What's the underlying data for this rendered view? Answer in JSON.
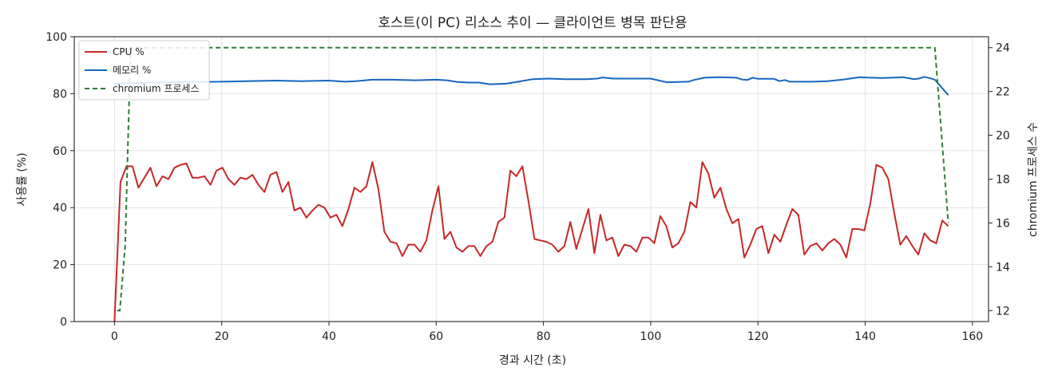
{
  "chart_data": {
    "type": "line",
    "title": "호스트(이 PC) 리소스 추이 — 클라이언트 병목 판단용",
    "xlabel": "경과 시간 (초)",
    "ylabel": "사용률 (%)",
    "y2label": "chromium 프로세스 수",
    "xlim": [
      -7.5,
      163
    ],
    "ylim": [
      0,
      100
    ],
    "y2lim": [
      11.5,
      24.5
    ],
    "xticks": [
      0,
      20,
      40,
      60,
      80,
      100,
      120,
      140,
      160
    ],
    "yticks": [
      0,
      20,
      40,
      60,
      80,
      100
    ],
    "y2ticks": [
      12,
      14,
      16,
      18,
      20,
      22,
      24
    ],
    "grid": true,
    "legend_position": "top-left",
    "series": [
      {
        "name": "CPU %",
        "axis": "left",
        "color": "#c62828",
        "style": "solid",
        "points": [
          [
            0,
            0
          ],
          [
            1,
            49
          ],
          [
            2,
            54.5
          ],
          [
            3,
            54.5
          ],
          [
            4,
            47
          ],
          [
            5,
            50.5
          ],
          [
            6,
            54
          ],
          [
            7,
            47.5
          ],
          [
            8,
            51
          ],
          [
            9,
            50
          ],
          [
            10,
            54
          ],
          [
            11,
            55
          ],
          [
            12,
            55.5
          ],
          [
            13,
            50.5
          ],
          [
            14,
            50.5
          ],
          [
            15,
            51
          ],
          [
            16,
            48
          ],
          [
            17,
            53
          ],
          [
            18,
            54
          ],
          [
            19,
            50
          ],
          [
            20,
            48
          ],
          [
            21,
            50.5
          ],
          [
            22,
            50
          ],
          [
            23,
            51.5
          ],
          [
            24,
            48
          ],
          [
            25,
            45.5
          ],
          [
            26,
            51.5
          ],
          [
            27,
            52.5
          ],
          [
            28,
            45.5
          ],
          [
            29,
            49
          ],
          [
            30,
            39
          ],
          [
            31,
            40
          ],
          [
            32,
            36.5
          ],
          [
            33,
            39
          ],
          [
            34,
            41
          ],
          [
            35,
            40
          ],
          [
            36,
            36.5
          ],
          [
            37,
            37.5
          ],
          [
            38,
            33.5
          ],
          [
            39,
            39.5
          ],
          [
            40,
            47
          ],
          [
            41,
            45.5
          ],
          [
            42,
            47.5
          ],
          [
            43,
            56
          ],
          [
            44,
            46.5
          ],
          [
            45,
            31.5
          ],
          [
            46,
            28
          ],
          [
            47,
            27.5
          ],
          [
            48,
            23
          ],
          [
            49,
            27
          ],
          [
            50,
            27
          ],
          [
            51,
            24.5
          ],
          [
            52,
            28.5
          ],
          [
            53,
            39
          ],
          [
            54,
            47.5
          ],
          [
            55,
            29
          ],
          [
            56,
            31.5
          ],
          [
            57,
            26
          ],
          [
            58,
            24.5
          ],
          [
            59,
            26.5
          ],
          [
            60,
            26.5
          ],
          [
            61,
            23
          ],
          [
            62,
            26.5
          ],
          [
            63,
            28
          ],
          [
            64,
            35
          ],
          [
            65,
            36.5
          ],
          [
            66,
            53
          ],
          [
            67,
            51
          ],
          [
            68,
            54.5
          ],
          [
            69,
            42.5
          ],
          [
            70,
            29
          ],
          [
            71,
            28.5
          ],
          [
            72,
            28
          ],
          [
            73,
            27
          ],
          [
            74,
            24.5
          ],
          [
            75,
            26.5
          ],
          [
            76,
            35
          ],
          [
            77,
            25.5
          ],
          [
            78,
            32.5
          ],
          [
            79,
            39.5
          ],
          [
            80,
            24
          ],
          [
            81,
            37.5
          ],
          [
            82,
            28.5
          ],
          [
            83,
            29.5
          ],
          [
            84,
            23
          ],
          [
            85,
            27
          ],
          [
            86,
            26.5
          ],
          [
            87,
            24.5
          ],
          [
            88,
            29.5
          ],
          [
            89,
            29.5
          ],
          [
            90,
            27.5
          ],
          [
            91,
            37
          ],
          [
            92,
            33.5
          ],
          [
            93,
            26
          ],
          [
            94,
            27.5
          ],
          [
            95,
            31.5
          ],
          [
            96,
            42
          ],
          [
            97,
            40
          ],
          [
            98,
            56
          ],
          [
            99,
            52
          ],
          [
            100,
            43.5
          ],
          [
            101,
            47
          ],
          [
            102,
            39.5
          ],
          [
            103,
            34.5
          ],
          [
            104,
            36
          ],
          [
            105,
            22.5
          ],
          [
            106,
            27
          ],
          [
            107,
            32.5
          ],
          [
            108,
            33.5
          ],
          [
            109,
            24
          ],
          [
            110,
            30.5
          ],
          [
            111,
            28
          ],
          [
            112,
            34
          ],
          [
            113,
            39.5
          ],
          [
            114,
            37.5
          ],
          [
            115,
            23.5
          ],
          [
            116,
            26.5
          ],
          [
            117,
            27.5
          ],
          [
            118,
            25
          ],
          [
            119,
            27.5
          ],
          [
            120,
            29
          ],
          [
            121,
            27
          ],
          [
            122,
            22.5
          ],
          [
            123,
            32.5
          ],
          [
            124,
            32.5
          ],
          [
            125,
            32
          ],
          [
            126,
            41.5
          ],
          [
            127,
            55
          ],
          [
            128,
            54
          ],
          [
            129,
            50
          ],
          [
            130,
            38
          ],
          [
            131,
            27
          ],
          [
            132,
            30
          ],
          [
            133,
            26.5
          ],
          [
            134,
            23.5
          ],
          [
            135,
            31
          ],
          [
            136,
            28.5
          ],
          [
            137,
            27.5
          ],
          [
            138,
            35.5
          ],
          [
            139,
            33.5
          ]
        ]
      },
      {
        "name": "메모리 %",
        "axis": "left",
        "color": "#1565c0",
        "style": "solid",
        "points": [
          [
            0,
            83.5
          ],
          [
            10,
            84
          ],
          [
            20,
            84.2
          ],
          [
            30,
            84.6
          ],
          [
            35,
            84.4
          ],
          [
            40,
            84.6
          ],
          [
            43,
            84.2
          ],
          [
            45,
            84.4
          ],
          [
            48,
            84.9
          ],
          [
            52,
            84.9
          ],
          [
            56,
            84.7
          ],
          [
            60,
            84.9
          ],
          [
            62,
            84.7
          ],
          [
            64,
            84.1
          ],
          [
            66,
            83.9
          ],
          [
            68,
            83.9
          ],
          [
            70,
            83.3
          ],
          [
            73,
            83.5
          ],
          [
            75,
            84.1
          ],
          [
            78,
            85.1
          ],
          [
            81,
            85.3
          ],
          [
            84,
            85.1
          ],
          [
            88,
            85.1
          ],
          [
            90,
            85.3
          ],
          [
            91,
            85.7
          ],
          [
            93,
            85.3
          ],
          [
            97,
            85.3
          ],
          [
            100,
            85.3
          ],
          [
            103,
            84
          ],
          [
            107,
            84.2
          ],
          [
            108,
            84.8
          ],
          [
            110,
            85.6
          ],
          [
            113,
            85.8
          ],
          [
            116,
            85.6
          ],
          [
            117,
            85
          ],
          [
            118,
            84.8
          ],
          [
            119,
            85.6
          ],
          [
            120,
            85.2
          ],
          [
            123,
            85.2
          ],
          [
            124,
            84.4
          ],
          [
            125,
            84.8
          ],
          [
            126,
            84.2
          ],
          [
            130,
            84.2
          ],
          [
            133,
            84.4
          ],
          [
            136,
            85.0
          ],
          [
            139,
            85.8
          ],
          [
            141,
            85.6
          ],
          [
            143,
            85.5
          ],
          [
            145,
            85.6
          ],
          [
            147,
            85.8
          ],
          [
            149,
            85.1
          ],
          [
            150,
            85.3
          ],
          [
            151,
            85.9
          ],
          [
            152,
            85.5
          ],
          [
            153,
            84.9
          ],
          [
            155.5,
            79.5
          ]
        ]
      },
      {
        "name": "chromium 프로세스",
        "axis": "right",
        "color": "#2e7d32",
        "style": "dashed",
        "points": [
          [
            0.5,
            12
          ],
          [
            1,
            12
          ],
          [
            2,
            15
          ],
          [
            3,
            24
          ],
          [
            153,
            24
          ],
          [
            155.5,
            16
          ]
        ]
      }
    ]
  }
}
